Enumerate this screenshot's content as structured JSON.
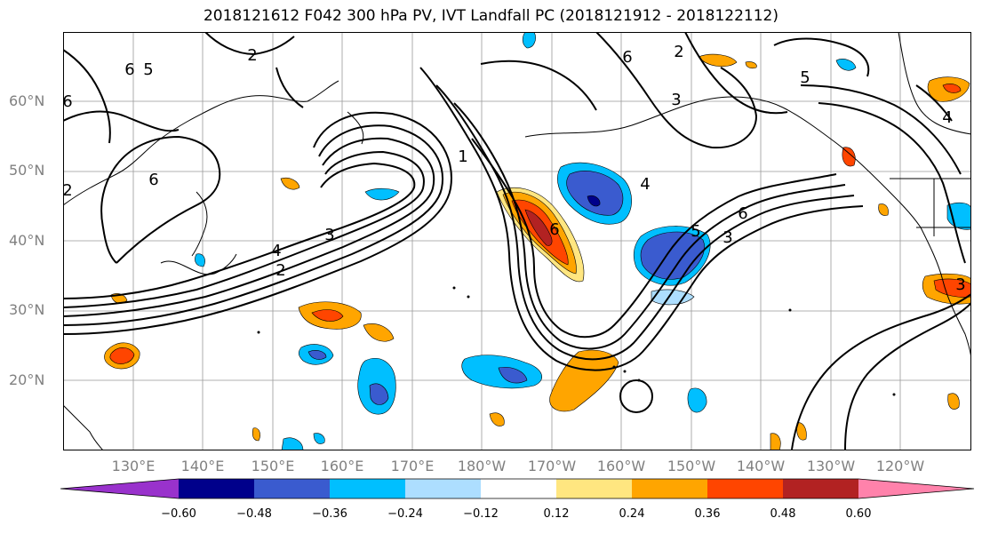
{
  "title": "2018121612 F042 300 hPa PV, IVT Landfall PC (2018121912 - 2018122112)",
  "map": {
    "lat_labels": [
      "60°N",
      "50°N",
      "40°N",
      "30°N",
      "20°N"
    ],
    "lon_labels": [
      "130°E",
      "140°E",
      "150°E",
      "160°E",
      "170°E",
      "180°W",
      "170°W",
      "160°W",
      "150°W",
      "140°W",
      "130°W",
      "120°W"
    ],
    "contour_labels": [
      "2",
      "6",
      "5",
      "6",
      "6",
      "4",
      "3",
      "2",
      "1",
      "6",
      "2",
      "4",
      "6",
      "3",
      "5",
      "5",
      "4",
      "2",
      "6",
      "3",
      "3"
    ]
  },
  "colorbar": {
    "ticks": [
      "−0.60",
      "−0.48",
      "−0.36",
      "−0.24",
      "−0.12",
      "0.12",
      "0.24",
      "0.36",
      "0.48",
      "0.60"
    ],
    "colors": {
      "lt_-0.60": "#9932CC",
      "-0.60_-0.48": "#00008B",
      "-0.48_-0.36": "#3A5BCF",
      "-0.36_-0.24": "#00BFFF",
      "-0.24_-0.12": "#ADDEFF",
      "-0.12_0.12": "#FFFFFF",
      "0.12_0.24": "#FFE680",
      "0.24_0.36": "#FFA500",
      "0.36_0.48": "#FF4500",
      "0.48_0.60": "#B22222",
      "gt_0.60": "#FF82AB"
    }
  }
}
